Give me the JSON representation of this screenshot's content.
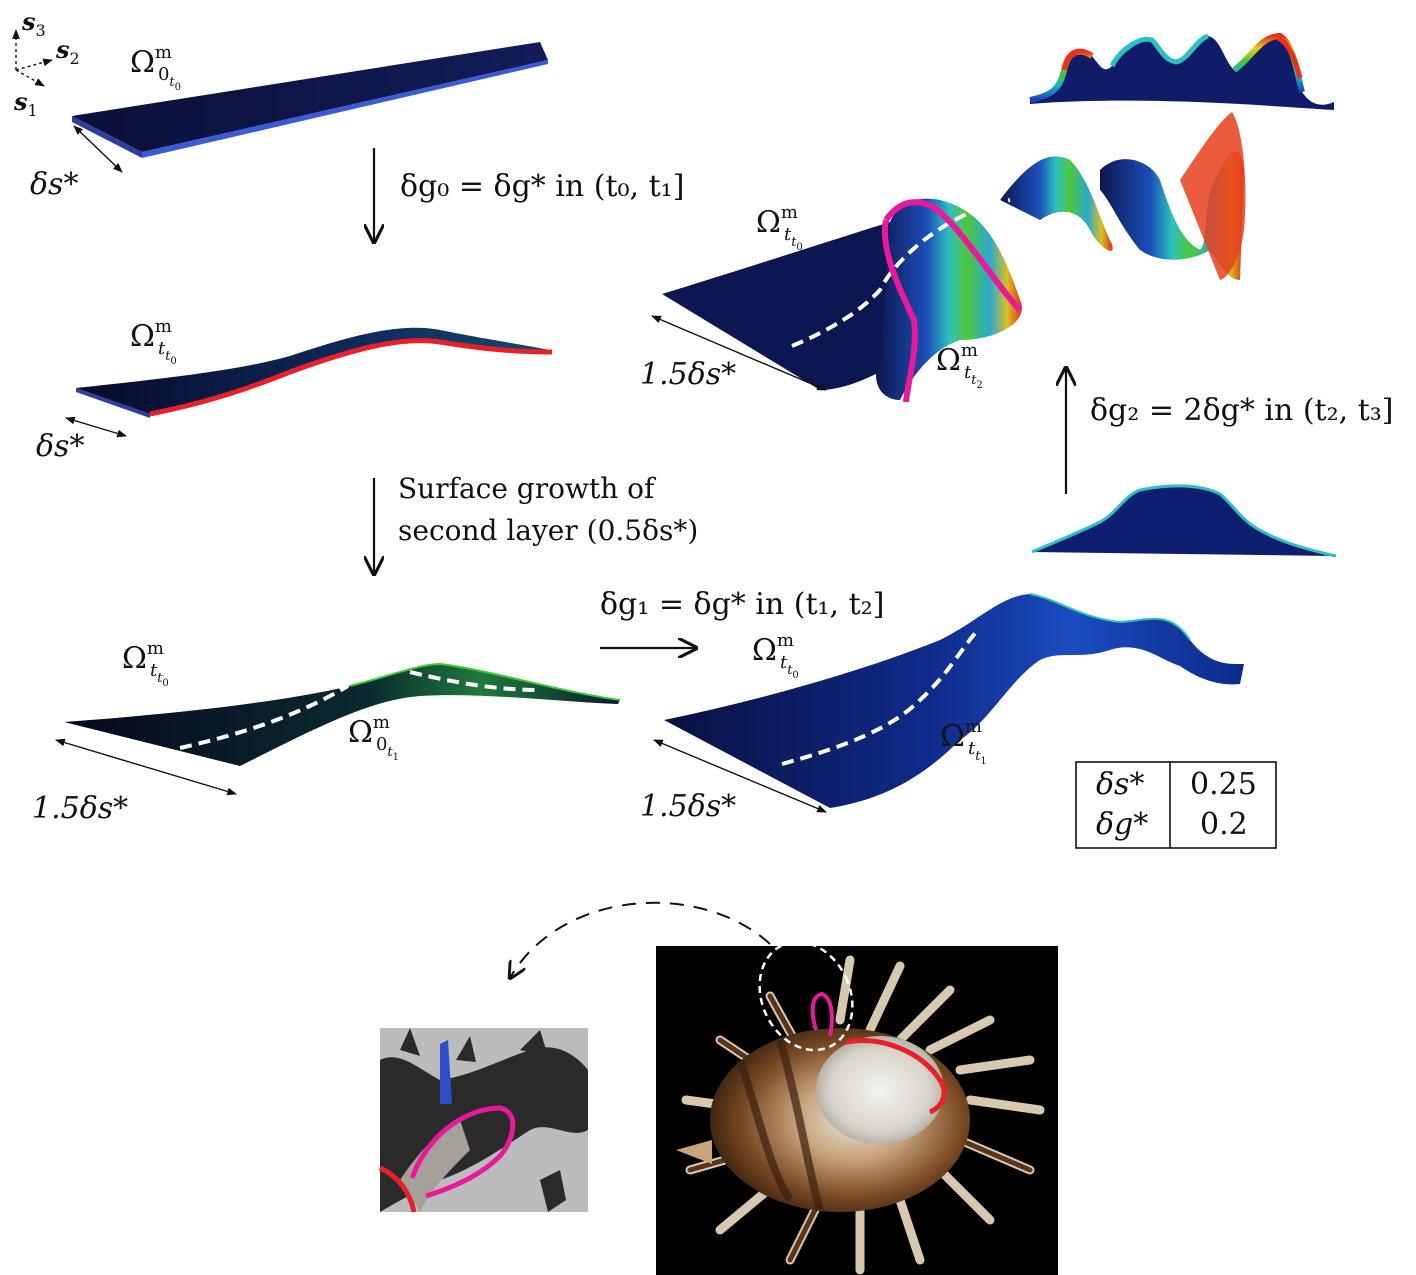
{
  "axes": {
    "s3": "s",
    "s3_sub": "3",
    "s2": "s",
    "s2_sub": "2",
    "s1": "s",
    "s1_sub": "1"
  },
  "omega": {
    "symbol": "Ω",
    "sup": "m"
  },
  "labels": {
    "omega_0_t0": {
      "sub": "0",
      "subsub": "t",
      "subsubsub": "0"
    },
    "omega_t_t0": {
      "sub": "t",
      "subsub": "t",
      "subsubsub": "0"
    },
    "omega_0_t1": {
      "sub": "0",
      "subsub": "t",
      "subsubsub": "1"
    },
    "omega_t_t1": {
      "sub": "t",
      "subsub": "t",
      "subsubsub": "1"
    },
    "omega_t_t2": {
      "sub": "t",
      "subsub": "t",
      "subsubsub": "2"
    }
  },
  "widths": {
    "ds": "δs*",
    "ds15": "1.5δs*"
  },
  "steps": {
    "step0": "δg₀ = δg* in (t₀, t₁]",
    "growth_line1": "Surface growth of",
    "growth_line2": "second layer (0.5δs*)",
    "step1": "δg₁ = δg* in (t₁, t₂]",
    "step2": "δg₂ = 2δg* in (t₂, t₃]"
  },
  "table": {
    "rows": [
      {
        "param": "δs*",
        "value": "0.25"
      },
      {
        "param": "δg*",
        "value": "0.2"
      }
    ]
  },
  "colors": {
    "sheet_dark": "#0d1440",
    "sheet_edge": "#3b5bd6",
    "red_curve": "#e8202a",
    "magenta_curve": "#e8199a",
    "blue_marker": "#2a4fc8",
    "photo_bg": "#000000",
    "inset_bg": "#bcbcbc"
  }
}
